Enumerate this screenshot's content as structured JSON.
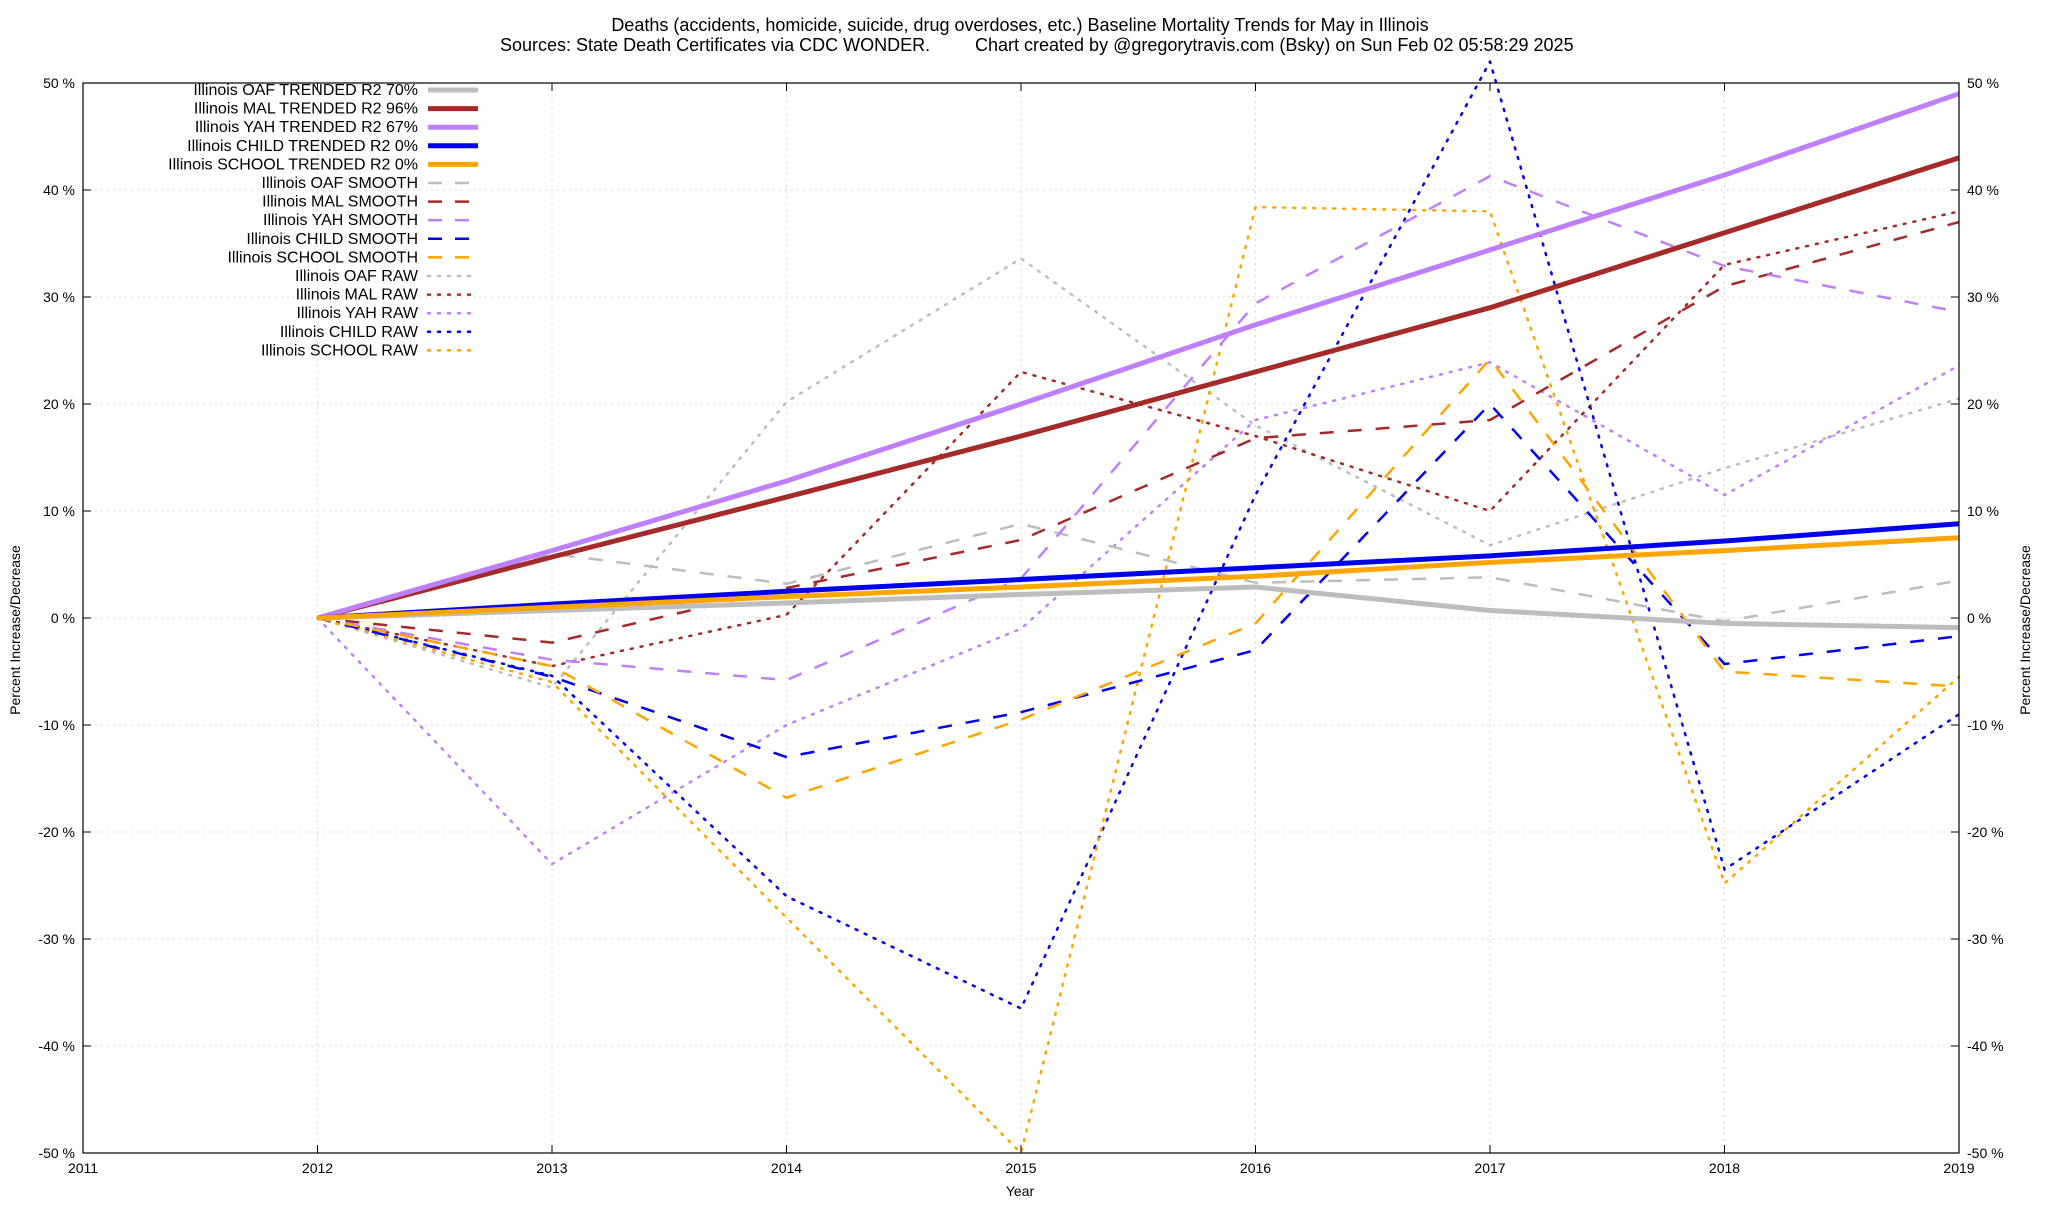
{
  "chart_data": {
    "type": "line",
    "title": "Deaths (accidents, homicide, suicide, drug overdoses, etc.)  Baseline Mortality Trends for May in Illinois",
    "subtitle_left": "Sources: State Death Certificates via CDC WONDER.",
    "subtitle_right": "Chart created by @gregorytravis.com (Bsky) on Sun Feb 02 05:58:29 2025",
    "xlabel": "Year",
    "ylabel": "Percent Increase/Decrease",
    "y2label": "Percent Increase/Decrease",
    "xlim": [
      2011,
      2019
    ],
    "ylim": [
      -50,
      50
    ],
    "x_ticks": [
      2011,
      2012,
      2013,
      2014,
      2015,
      2016,
      2017,
      2018,
      2019
    ],
    "x_tick_labels": [
      "2011",
      "2012",
      "2013",
      "2014",
      "2015",
      "2016",
      "2017",
      "2018",
      "2019"
    ],
    "y_ticks": [
      -50,
      -40,
      -30,
      -20,
      -10,
      0,
      10,
      20,
      30,
      40,
      50
    ],
    "y_tick_labels": [
      "-50 %",
      "-40 %",
      "-30 %",
      "-20 %",
      "-10 %",
      "0 %",
      "10 %",
      "20 %",
      "30 %",
      "40 %",
      "50 %"
    ],
    "grid": true,
    "legend_position": "top-left",
    "x": [
      2012,
      2013,
      2014,
      2015,
      2016,
      2017,
      2018,
      2019
    ],
    "series": [
      {
        "name": "Illinois OAF TRENDED R2  70%",
        "style": "solid",
        "color": "#bdbdbd",
        "width": 5,
        "values": [
          0,
          0.7,
          1.4,
          2.2,
          2.9,
          0.7,
          -0.5,
          -0.9
        ]
      },
      {
        "name": "Illinois MAL TRENDED R2  96%",
        "style": "solid",
        "color": "#a52a2a",
        "width": 5,
        "values": [
          0,
          5.7,
          11.3,
          17.0,
          23.0,
          29.0,
          36.0,
          43.0
        ]
      },
      {
        "name": "Illinois YAH TRENDED R2  67%",
        "style": "solid",
        "color": "#bf80ff",
        "width": 5,
        "values": [
          0,
          6.3,
          12.8,
          20.0,
          27.4,
          34.4,
          41.4,
          49.0
        ]
      },
      {
        "name": "Illinois CHILD TRENDED R2   0%",
        "style": "solid",
        "color": "#0000ee",
        "width": 5,
        "values": [
          0,
          1.3,
          2.5,
          3.6,
          4.7,
          5.8,
          7.2,
          8.8
        ]
      },
      {
        "name": "Illinois SCHOOL TRENDED R2   0%",
        "style": "solid",
        "color": "#ffa500",
        "width": 5,
        "values": [
          0,
          1.0,
          2.0,
          2.9,
          3.9,
          5.2,
          6.3,
          7.5
        ]
      },
      {
        "name": "Illinois OAF SMOOTH",
        "style": "dashed",
        "color": "#bdbdbd",
        "width": 2.5,
        "values": [
          0,
          6.0,
          3.2,
          8.8,
          3.3,
          3.8,
          -0.3,
          3.5
        ]
      },
      {
        "name": "Illinois MAL SMOOTH",
        "style": "dashed",
        "color": "#a52a2a",
        "width": 2.5,
        "values": [
          0,
          -2.3,
          2.8,
          7.3,
          16.8,
          18.5,
          31.0,
          37.0
        ]
      },
      {
        "name": "Illinois YAH SMOOTH",
        "style": "dashed",
        "color": "#bf80ff",
        "width": 2.5,
        "values": [
          0,
          -3.9,
          -5.8,
          3.7,
          29.4,
          41.3,
          32.9,
          28.6
        ]
      },
      {
        "name": "Illinois CHILD SMOOTH",
        "style": "dashed",
        "color": "#0000ee",
        "width": 2.5,
        "values": [
          0,
          -5.5,
          -13.0,
          -8.8,
          -3.0,
          20.0,
          -4.3,
          -1.7
        ]
      },
      {
        "name": "Illinois SCHOOL SMOOTH",
        "style": "dashed",
        "color": "#ffa500",
        "width": 2.5,
        "values": [
          0,
          -4.5,
          -16.8,
          -9.5,
          -0.5,
          24.2,
          -5.0,
          -6.4
        ]
      },
      {
        "name": "Illinois OAF RAW",
        "style": "dotted",
        "color": "#bdbdbd",
        "width": 2.5,
        "values": [
          0,
          -6.5,
          20.2,
          33.6,
          18.0,
          6.8,
          14.0,
          20.5
        ]
      },
      {
        "name": "Illinois MAL RAW",
        "style": "dotted",
        "color": "#a52a2a",
        "width": 2.5,
        "values": [
          0,
          -4.5,
          0.3,
          23.0,
          17.0,
          10.0,
          33.0,
          38.0
        ]
      },
      {
        "name": "Illinois YAH RAW",
        "style": "dotted",
        "color": "#bf80ff",
        "width": 2.5,
        "values": [
          0,
          -23.0,
          -10.0,
          -1.0,
          18.5,
          23.9,
          11.5,
          23.6
        ]
      },
      {
        "name": "Illinois CHILD RAW",
        "style": "dotted",
        "color": "#0000ee",
        "width": 2.5,
        "values": [
          0,
          -5.4,
          -26.0,
          -36.5,
          11.5,
          52.0,
          -23.5,
          -9.0
        ]
      },
      {
        "name": "Illinois SCHOOL RAW",
        "style": "dotted",
        "color": "#ffa500",
        "width": 2.5,
        "values": [
          0,
          -6.0,
          -28.0,
          -50.0,
          38.4,
          38.0,
          -24.8,
          -5.5
        ]
      }
    ]
  }
}
